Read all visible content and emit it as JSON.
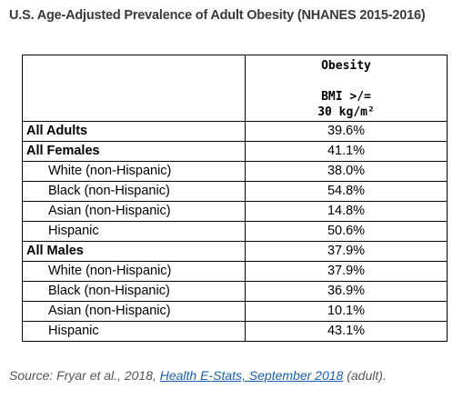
{
  "title": "U.S. Age-Adjusted Prevalence of Adult Obesity (NHANES 2015-2016)",
  "table": {
    "header": [
      "Obesity",
      "BMI >/=",
      "30 kg/m²"
    ],
    "rows": [
      [
        "All Adults",
        "39.6%"
      ],
      [
        "All Females",
        "41.1%"
      ],
      [
        "White (non-Hispanic)",
        "38.0%"
      ],
      [
        "Black (non-Hispanic)",
        "54.8%"
      ],
      [
        "Asian (non-Hispanic)",
        "14.8%"
      ],
      [
        "Hispanic",
        "50.6%"
      ],
      [
        "All Males",
        "37.9%"
      ],
      [
        "White (non-Hispanic)",
        "37.9%"
      ],
      [
        "Black (non-Hispanic)",
        "36.9%"
      ],
      [
        "Asian (non-Hispanic)",
        "10.1%"
      ],
      [
        "Hispanic",
        "43.1%"
      ]
    ]
  },
  "source": {
    "prefix": "Source: Fryar et al., 2018,",
    "link": "Health E-Stats, September 2018",
    "suffix": "(adult)."
  }
}
